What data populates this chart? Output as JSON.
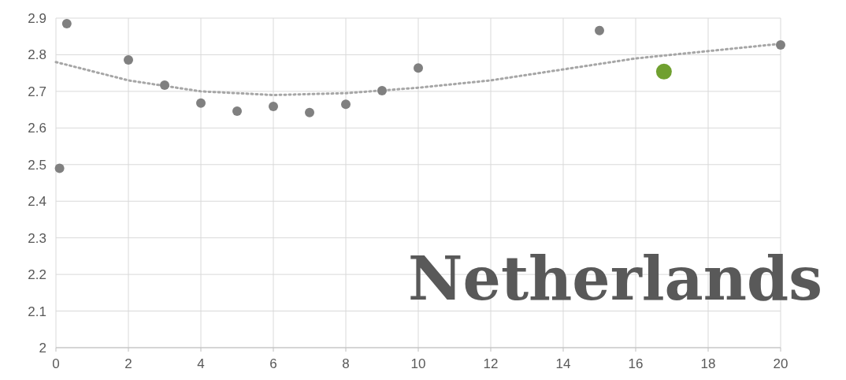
{
  "chart_data": {
    "type": "scatter",
    "xlim": [
      0,
      20
    ],
    "xticks": [
      0,
      2,
      4,
      6,
      8,
      10,
      12,
      14,
      16,
      18,
      20
    ],
    "ylim": [
      2,
      2.9
    ],
    "yticks": [
      2,
      2.1,
      2.2,
      2.3,
      2.4,
      2.5,
      2.6,
      2.7,
      2.8,
      2.9
    ],
    "grid": true,
    "marker": "circle",
    "annotations": [
      "Netherlands"
    ],
    "series": [
      {
        "type": "line",
        "color": "#a6a6a6",
        "line_style": "dotted",
        "marker": "none",
        "x": [
          0,
          2,
          4,
          6,
          8,
          10,
          12,
          14,
          16,
          18,
          20
        ],
        "values": [
          2.78,
          2.73,
          2.7,
          2.69,
          2.695,
          2.71,
          2.73,
          2.76,
          2.79,
          2.81,
          2.83
        ]
      },
      {
        "color": "#808080",
        "x": [
          0.1,
          0.3,
          2,
          3,
          4,
          5,
          6,
          7,
          8,
          9,
          10,
          15,
          20
        ],
        "values": [
          2.49,
          2.885,
          2.786,
          2.717,
          2.668,
          2.646,
          2.659,
          2.642,
          2.665,
          2.702,
          2.764,
          2.866,
          2.827
        ]
      },
      {
        "type": "bubble",
        "color": "#70a030",
        "x": [
          16.78
        ],
        "values": [
          2.754
        ],
        "sizes": [
          1
        ]
      }
    ]
  }
}
